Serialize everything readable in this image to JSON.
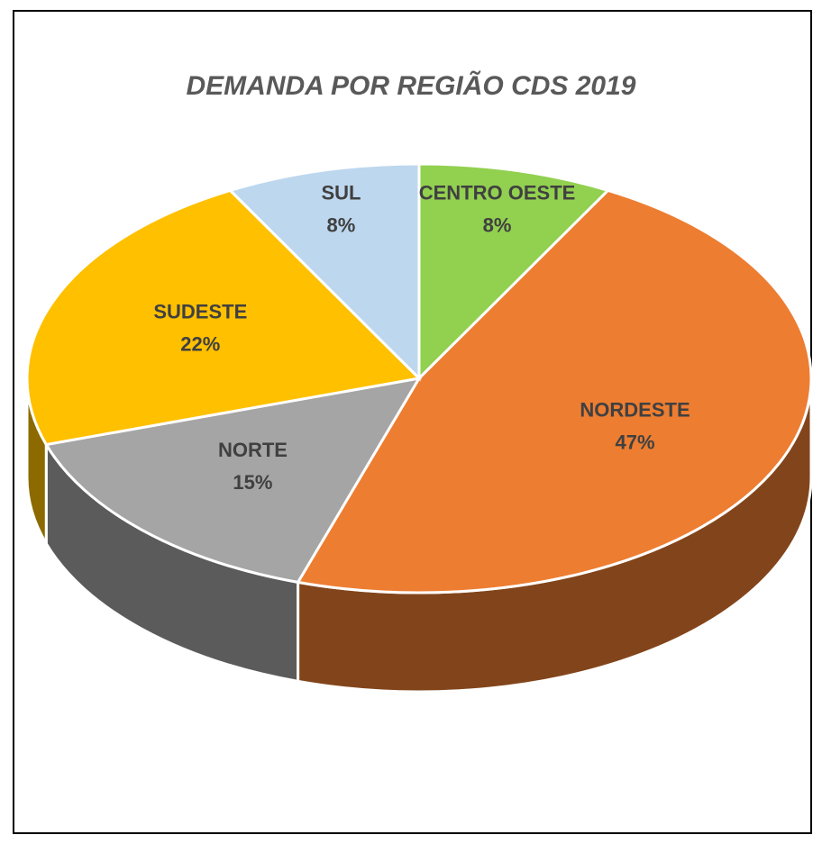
{
  "chart_data": {
    "type": "pie",
    "title": "DEMANDA POR REGIÃO CDS 2019",
    "categories": [
      "CENTRO OESTE",
      "NORDESTE",
      "NORTE",
      "SUDESTE",
      "SUL"
    ],
    "values": [
      8,
      47,
      15,
      22,
      8
    ],
    "value_labels": [
      "8%",
      "47%",
      "15%",
      "22%",
      "8%"
    ],
    "colors": [
      "#92d050",
      "#ed7d31",
      "#a5a5a5",
      "#ffc000",
      "#bdd7ee"
    ],
    "three_d": true
  }
}
